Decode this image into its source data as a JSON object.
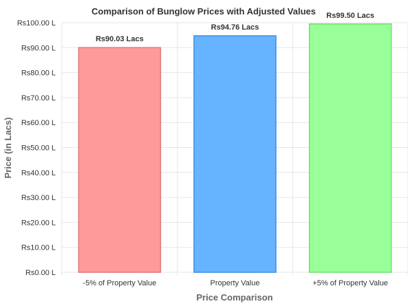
{
  "chart_data": {
    "type": "bar",
    "title": "Comparison of Bunglow Prices with Adjusted Values",
    "xlabel": "Price Comparison",
    "ylabel": "Price (in Lacs)",
    "categories": [
      "-5% of Property Value",
      "Property Value",
      "+5% of Property Value"
    ],
    "values": [
      90.03,
      94.76,
      99.5
    ],
    "data_labels": [
      "Rs90.03 Lacs",
      "Rs94.76 Lacs",
      "Rs99.50 Lacs"
    ],
    "ylim": [
      0,
      100
    ],
    "yticks": [
      0,
      10,
      20,
      30,
      40,
      50,
      60,
      70,
      80,
      90,
      100
    ],
    "ytick_labels": [
      "Rs0.00 L",
      "Rs10.00 L",
      "Rs20.00 L",
      "Rs30.00 L",
      "Rs40.00 L",
      "Rs50.00 L",
      "Rs60.00 L",
      "Rs70.00 L",
      "Rs80.00 L",
      "Rs90.00 L",
      "Rs100.00 L"
    ],
    "grid": true,
    "bar_fill_colors": [
      "#ff9a9a",
      "#66b3ff",
      "#99ff99"
    ],
    "bar_edge_colors": [
      "#e07a7a",
      "#3d8fe0",
      "#70e070"
    ]
  }
}
